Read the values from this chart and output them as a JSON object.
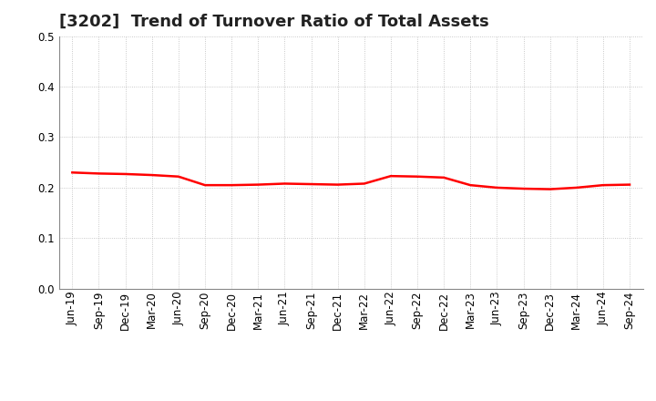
{
  "title": "[3202]  Trend of Turnover Ratio of Total Assets",
  "x_labels": [
    "Jun-19",
    "Sep-19",
    "Dec-19",
    "Mar-20",
    "Jun-20",
    "Sep-20",
    "Dec-20",
    "Mar-21",
    "Jun-21",
    "Sep-21",
    "Dec-21",
    "Mar-22",
    "Jun-22",
    "Sep-22",
    "Dec-22",
    "Mar-23",
    "Jun-23",
    "Sep-23",
    "Dec-23",
    "Mar-24",
    "Jun-24",
    "Sep-24"
  ],
  "y_values": [
    0.23,
    0.228,
    0.227,
    0.225,
    0.222,
    0.205,
    0.205,
    0.206,
    0.208,
    0.207,
    0.206,
    0.208,
    0.223,
    0.222,
    0.22,
    0.205,
    0.2,
    0.198,
    0.197,
    0.2,
    0.205,
    0.206
  ],
  "line_color": "#ff0000",
  "line_width": 1.8,
  "ylim": [
    0.0,
    0.5
  ],
  "yticks": [
    0.0,
    0.1,
    0.2,
    0.3,
    0.4,
    0.5
  ],
  "background_color": "#ffffff",
  "grid_color": "#bbbbbb",
  "title_fontsize": 13,
  "tick_fontsize": 8.5
}
